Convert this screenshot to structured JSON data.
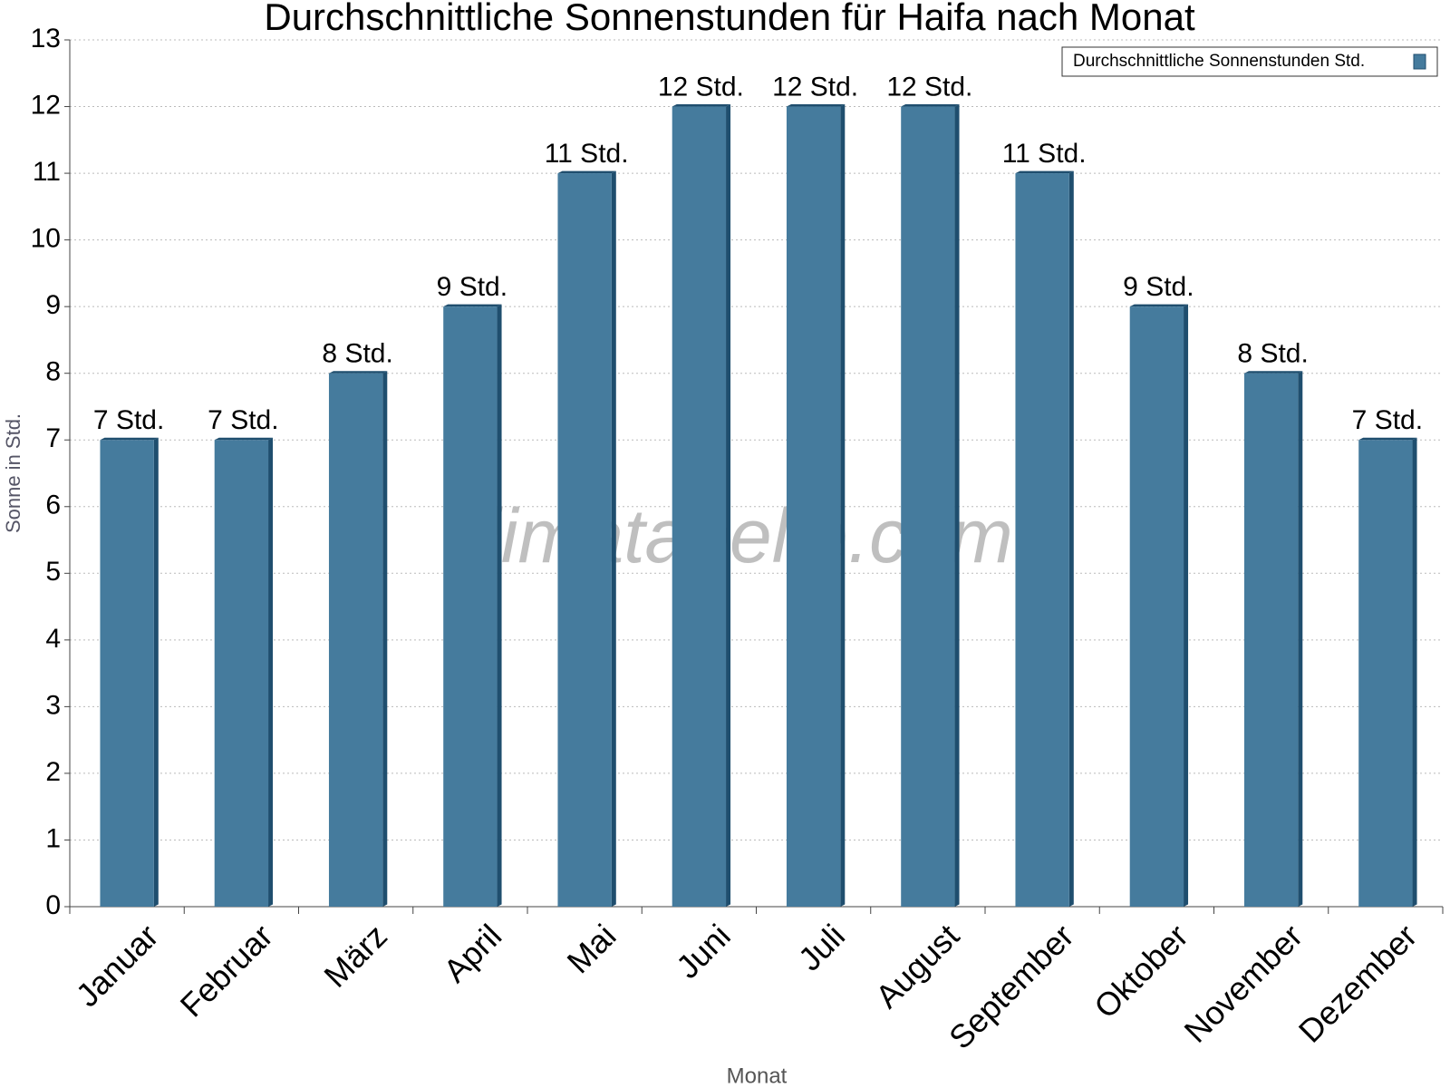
{
  "chart_data": {
    "type": "bar",
    "title": "Durchschnittliche Sonnenstunden für Haifa nach Monat",
    "x_label": "Monat",
    "y_label": "Sonne in Std.",
    "watermark": "klimatabelle.com",
    "categories": [
      "Januar",
      "Februar",
      "März",
      "April",
      "Mai",
      "Juni",
      "Juli",
      "August",
      "September",
      "Oktober",
      "November",
      "Dezember"
    ],
    "series": [
      {
        "name": "Durchschnittliche Sonnenstunden Std.",
        "color": "#457b9d",
        "values": [
          7,
          7,
          8,
          9,
          11,
          12,
          12,
          12,
          11,
          9,
          8,
          7
        ],
        "value_labels": [
          "7 Std.",
          "7 Std.",
          "8 Std.",
          "9 Std.",
          "11 Std.",
          "12 Std.",
          "12 Std.",
          "12 Std.",
          "11 Std.",
          "9 Std.",
          "8 Std.",
          "7 Std."
        ]
      }
    ],
    "ylim": [
      0,
      13
    ],
    "yticks": [
      0,
      1,
      2,
      3,
      4,
      5,
      6,
      7,
      8,
      9,
      10,
      11,
      12,
      13
    ],
    "grid": true,
    "legend": "top-right"
  }
}
